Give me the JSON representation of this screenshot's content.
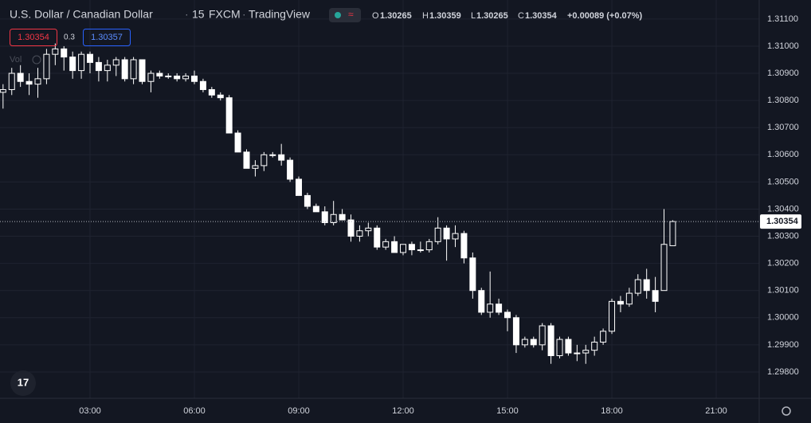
{
  "header": {
    "symbol": "U.S. Dollar / Canadian Dollar",
    "interval": "15",
    "exchange": "FXCM",
    "source": "TradingView",
    "change": "+0.00089 (+0.07%)",
    "spread": "0.3",
    "ask": "1.30357",
    "volume_label": "Vol"
  },
  "chart_data": {
    "type": "candlestick",
    "color": "#ffffff",
    "x": [
      "00:30",
      "00:45",
      "01:00",
      "01:15",
      "01:30",
      "01:45",
      "02:00",
      "02:15",
      "02:30",
      "02:45",
      "03:00",
      "03:15",
      "03:30",
      "03:45",
      "04:00",
      "04:15",
      "04:30",
      "04:45",
      "05:00",
      "05:15",
      "05:30",
      "05:45",
      "06:00",
      "06:15",
      "06:30",
      "06:45",
      "07:00",
      "07:15",
      "07:30",
      "07:45",
      "08:00",
      "08:15",
      "08:30",
      "08:45",
      "09:00",
      "09:15",
      "09:30",
      "09:45",
      "10:00",
      "10:15",
      "10:30",
      "10:45",
      "11:00",
      "11:15",
      "11:30",
      "11:45",
      "12:00",
      "12:15",
      "12:30",
      "12:45",
      "13:00",
      "13:15",
      "13:30",
      "13:45",
      "14:00",
      "14:15",
      "14:30",
      "14:45",
      "15:00",
      "15:15",
      "15:30",
      "15:45",
      "16:00",
      "16:15",
      "16:30",
      "16:45",
      "17:00",
      "17:15",
      "17:30",
      "17:45",
      "18:00",
      "18:15",
      "18:30",
      "18:45",
      "19:00",
      "19:15",
      "19:30",
      "19:45"
    ],
    "open": [
      1.3083,
      1.3084,
      1.309,
      1.3087,
      1.3086,
      1.3088,
      1.3097,
      1.3099,
      1.3096,
      1.3091,
      1.3097,
      1.3094,
      1.3091,
      1.3093,
      1.3095,
      1.3088,
      1.3095,
      1.3087,
      1.309,
      1.3089,
      1.3089,
      1.3088,
      1.3089,
      1.3087,
      1.3084,
      1.3082,
      1.3081,
      1.3068,
      1.3061,
      1.3055,
      1.3056,
      1.306,
      1.306,
      1.3058,
      1.3051,
      1.3045,
      1.3041,
      1.3039,
      1.3035,
      1.3038,
      1.3036,
      1.303,
      1.3032,
      1.3033,
      1.3026,
      1.3028,
      1.3024,
      1.3027,
      1.3025,
      1.3025,
      1.3028,
      1.3033,
      1.3029,
      1.3031,
      1.3022,
      1.301,
      1.3002,
      1.3005,
      1.3002,
      1.3,
      1.299,
      1.2992,
      1.299,
      1.2997,
      1.2986,
      1.2992,
      1.2987,
      1.2987,
      1.2988,
      1.2991,
      1.2995,
      1.3006,
      1.3005,
      1.3009,
      1.3014,
      1.301,
      1.301,
      1.30265
    ],
    "high": [
      1.3086,
      1.3092,
      1.3093,
      1.309,
      1.3092,
      1.3099,
      1.3101,
      1.31,
      1.3098,
      1.3098,
      1.3098,
      1.3096,
      1.3095,
      1.3096,
      1.3096,
      1.3096,
      1.3095,
      1.3091,
      1.3091,
      1.309,
      1.309,
      1.309,
      1.3091,
      1.3088,
      1.3085,
      1.3083,
      1.3082,
      1.3069,
      1.3062,
      1.3058,
      1.3061,
      1.3061,
      1.3064,
      1.3059,
      1.3052,
      1.3046,
      1.3042,
      1.3041,
      1.3043,
      1.304,
      1.3038,
      1.3034,
      1.3035,
      1.3034,
      1.3029,
      1.303,
      1.3027,
      1.3028,
      1.3028,
      1.3029,
      1.3037,
      1.3034,
      1.3034,
      1.3032,
      1.3024,
      1.3011,
      1.3017,
      1.3007,
      1.3003,
      1.3001,
      1.2993,
      1.2993,
      1.2998,
      1.2998,
      1.2993,
      1.2993,
      1.299,
      1.299,
      1.2993,
      1.2996,
      1.3007,
      1.3008,
      1.3011,
      1.3016,
      1.3018,
      1.3015,
      1.304,
      1.30359
    ],
    "low": [
      1.3077,
      1.3082,
      1.3085,
      1.3082,
      1.3081,
      1.3086,
      1.3093,
      1.3091,
      1.3088,
      1.3088,
      1.309,
      1.3087,
      1.3087,
      1.3089,
      1.3087,
      1.3086,
      1.3086,
      1.3083,
      1.3088,
      1.3088,
      1.3087,
      1.3087,
      1.3086,
      1.3083,
      1.3081,
      1.308,
      1.3068,
      1.3061,
      1.3055,
      1.3052,
      1.3054,
      1.3059,
      1.3056,
      1.305,
      1.3045,
      1.304,
      1.3039,
      1.3034,
      1.3034,
      1.3036,
      1.3028,
      1.3028,
      1.303,
      1.3025,
      1.3025,
      1.3024,
      1.3023,
      1.3023,
      1.3024,
      1.3024,
      1.3027,
      1.3021,
      1.3026,
      1.302,
      1.3007,
      1.3001,
      1.3,
      1.3001,
      1.2995,
      1.2987,
      1.2989,
      1.2989,
      1.2988,
      1.2983,
      1.2985,
      1.2986,
      1.2984,
      1.2983,
      1.2986,
      1.299,
      1.2994,
      1.3002,
      1.3004,
      1.3008,
      1.3007,
      1.3002,
      1.301,
      1.30265
    ],
    "close": [
      1.3084,
      1.309,
      1.3087,
      1.3086,
      1.3088,
      1.3097,
      1.3099,
      1.3096,
      1.3091,
      1.3097,
      1.3094,
      1.3091,
      1.3093,
      1.3095,
      1.3088,
      1.3095,
      1.3087,
      1.309,
      1.3089,
      1.3089,
      1.3088,
      1.3089,
      1.3087,
      1.3084,
      1.3082,
      1.3081,
      1.3068,
      1.3061,
      1.3055,
      1.3056,
      1.306,
      1.306,
      1.3058,
      1.3051,
      1.3045,
      1.3041,
      1.3039,
      1.3035,
      1.3038,
      1.3036,
      1.303,
      1.3032,
      1.3033,
      1.3026,
      1.3028,
      1.3024,
      1.3027,
      1.3025,
      1.3025,
      1.3028,
      1.3033,
      1.3029,
      1.3031,
      1.3022,
      1.301,
      1.3002,
      1.3005,
      1.3002,
      1.3,
      1.299,
      1.2992,
      1.299,
      1.2997,
      1.2986,
      1.2992,
      1.2987,
      1.2987,
      1.2988,
      1.2991,
      1.2995,
      1.3006,
      1.3005,
      1.3009,
      1.3014,
      1.301,
      1.3006,
      1.3027,
      1.30354
    ],
    "ylim": [
      1.29703,
      1.3117
    ],
    "yticks": [
      {
        "value": 1.298,
        "label": "1.29800"
      },
      {
        "value": 1.299,
        "label": "1.29900"
      },
      {
        "value": 1.3,
        "label": "1.30000"
      },
      {
        "value": 1.301,
        "label": "1.30100"
      },
      {
        "value": 1.302,
        "label": "1.30200"
      },
      {
        "value": 1.303,
        "label": "1.30300"
      },
      {
        "value": 1.304,
        "label": "1.30400"
      },
      {
        "value": 1.305,
        "label": "1.30500"
      },
      {
        "value": 1.306,
        "label": "1.30600"
      },
      {
        "value": 1.307,
        "label": "1.30700"
      },
      {
        "value": 1.308,
        "label": "1.30800"
      },
      {
        "value": 1.309,
        "label": "1.30900"
      },
      {
        "value": 1.31,
        "label": "1.31000"
      },
      {
        "value": 1.311,
        "label": "1.31100"
      }
    ],
    "xticks": [
      "03:00",
      "06:00",
      "09:00",
      "12:00",
      "15:00",
      "18:00",
      "21:00"
    ],
    "grid": true
  }
}
